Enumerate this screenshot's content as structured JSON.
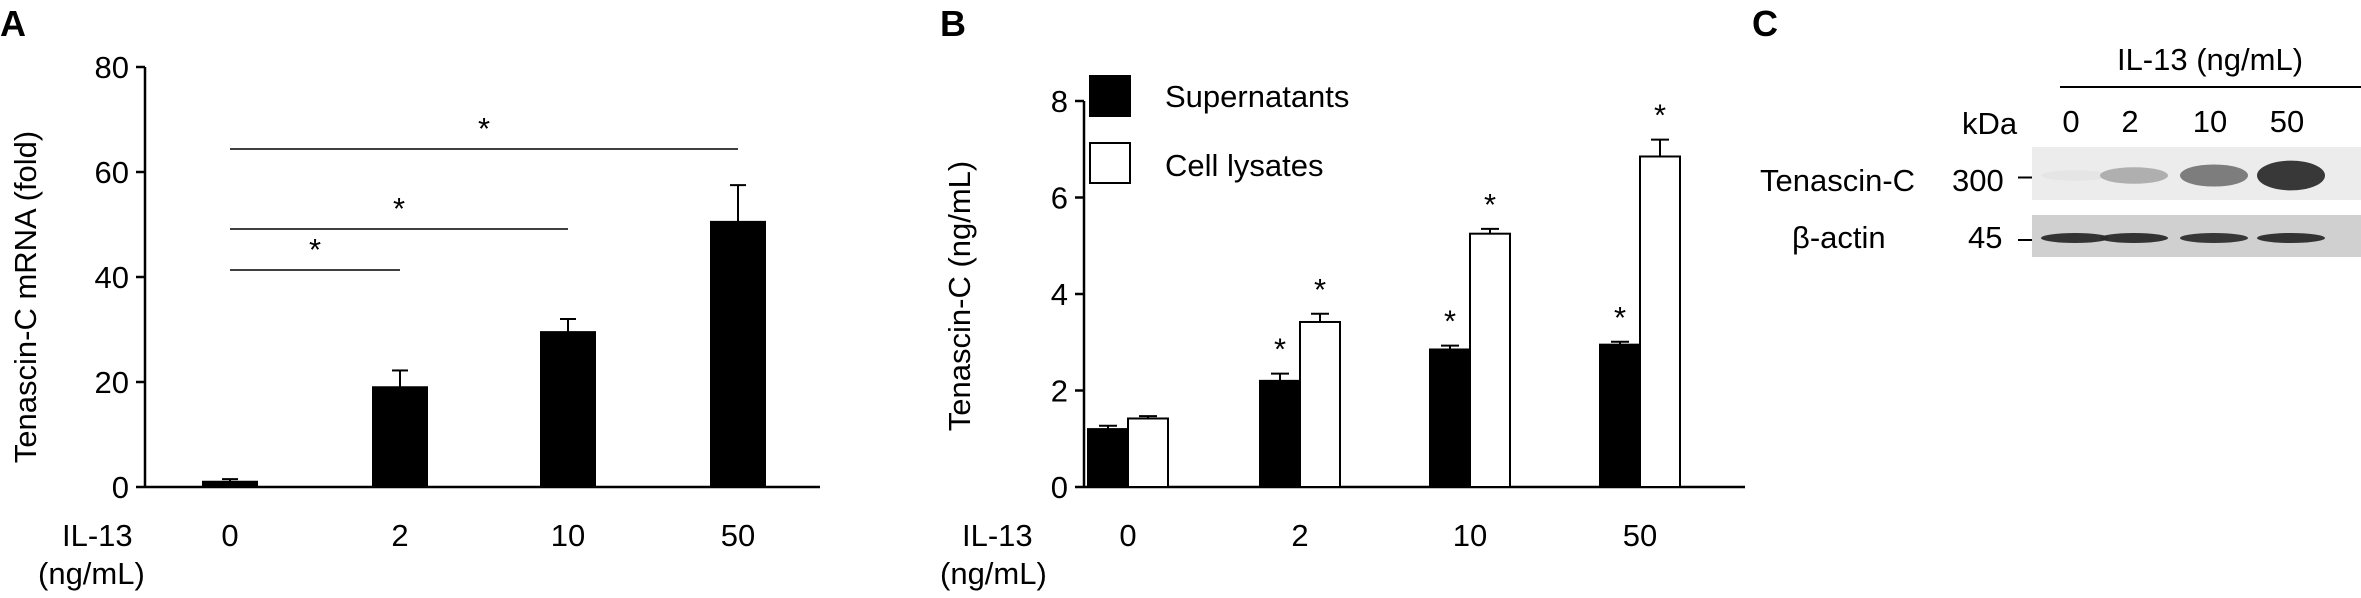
{
  "chart_data": [
    {
      "panel": "A",
      "type": "bar",
      "ylabel": "Tenascin-C mRNA (fold)",
      "xlabel_line1": "IL-13",
      "xlabel_line2": "(ng/mL)",
      "categories": [
        "0",
        "2",
        "10",
        "50"
      ],
      "series": [
        {
          "values": [
            1,
            19,
            29.5,
            50.5
          ],
          "errors": [
            0.5,
            3.2,
            2.5,
            7
          ],
          "color": "#000000"
        }
      ],
      "ylim": [
        0,
        80
      ],
      "yticks": [
        "0",
        "20",
        "40",
        "60",
        "80"
      ],
      "significance": [
        {
          "from": "0",
          "to": "2",
          "label": "*"
        },
        {
          "from": "0",
          "to": "10",
          "label": "*"
        },
        {
          "from": "0",
          "to": "50",
          "label": "*"
        }
      ]
    },
    {
      "panel": "B",
      "type": "bar",
      "ylabel": "Tenascin-C (ng/mL)",
      "xlabel_line1": "IL-13",
      "xlabel_line2": "(ng/mL)",
      "categories": [
        "0",
        "2",
        "10",
        "50"
      ],
      "series": [
        {
          "name": "Supernatants",
          "values": [
            1.2,
            2.2,
            2.85,
            2.95
          ],
          "errors": [
            0.07,
            0.15,
            0.08,
            0.06
          ],
          "color": "#000000",
          "stars": [
            "",
            "*",
            "*",
            "*"
          ]
        },
        {
          "name": "Cell lysates",
          "values": [
            1.42,
            3.42,
            5.25,
            6.85
          ],
          "errors": [
            0.05,
            0.17,
            0.1,
            0.35
          ],
          "color": "#ffffff",
          "stars": [
            "",
            "*",
            "*",
            "*"
          ]
        }
      ],
      "ylim": [
        0,
        8
      ],
      "yticks": [
        "0",
        "2",
        "4",
        "6",
        "8"
      ],
      "legend": "top-left"
    }
  ],
  "western_blot": {
    "panel": "C",
    "header": "IL-13 (ng/mL)",
    "kda_label": "kDa",
    "lanes": [
      "0",
      "2",
      "10",
      "50"
    ],
    "rows": [
      {
        "label": "Tenascin-C",
        "mw": "300",
        "intensities": [
          0.03,
          0.3,
          0.55,
          0.9
        ]
      },
      {
        "label": "β-actin",
        "mw": "45",
        "intensities": [
          0.92,
          0.92,
          0.9,
          0.92
        ]
      }
    ]
  }
}
